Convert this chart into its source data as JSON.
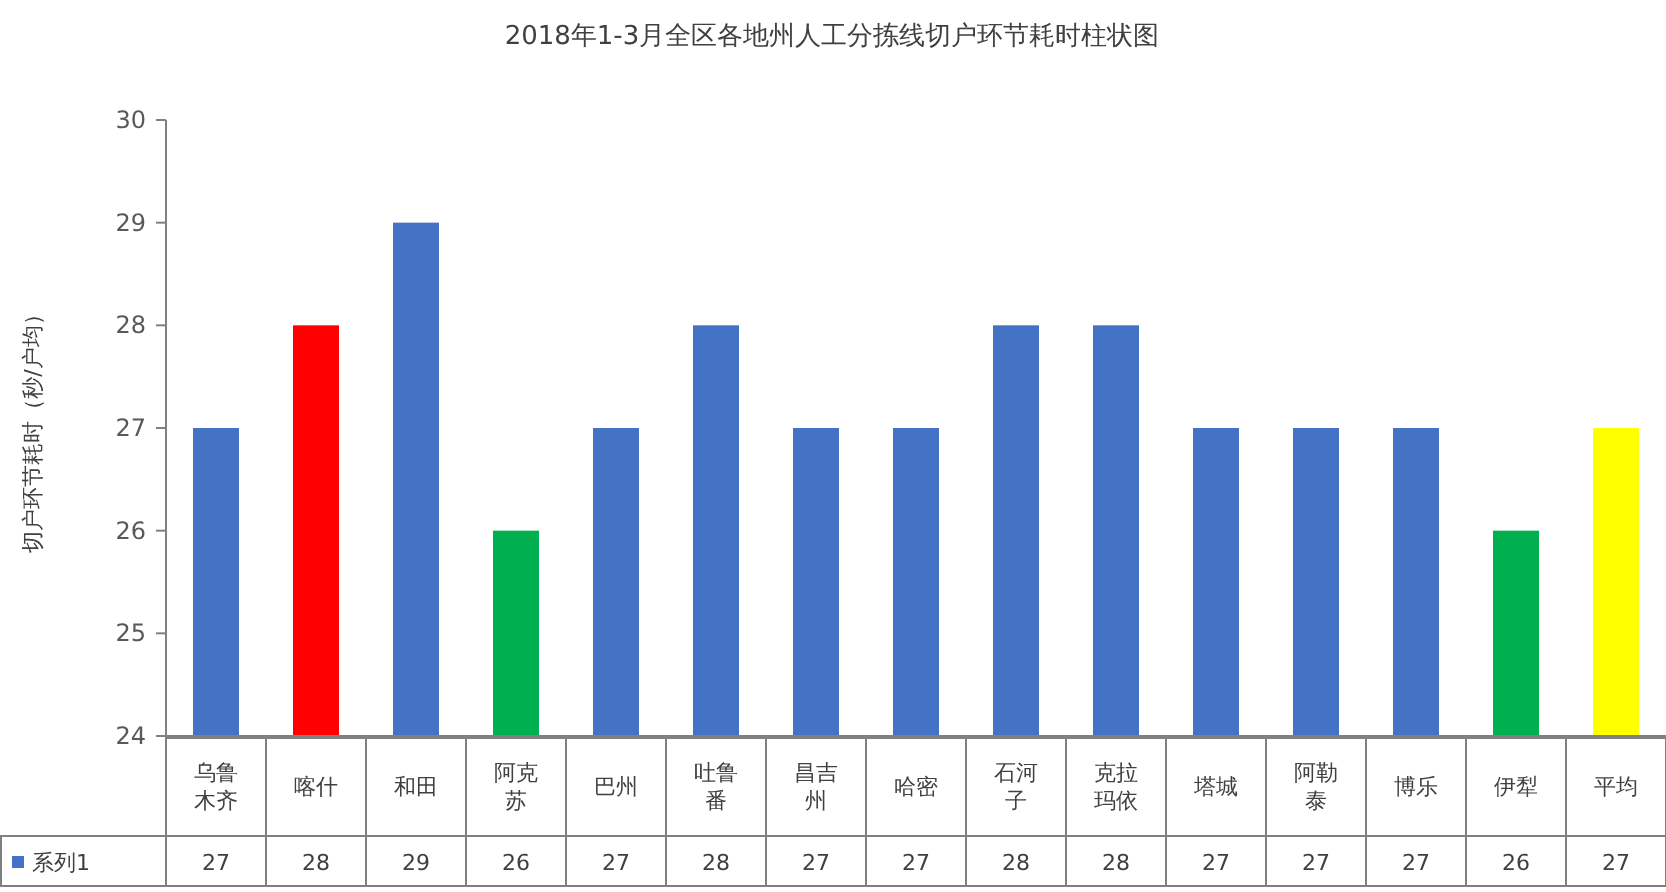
{
  "chart_data": {
    "type": "bar",
    "title": "2018年1-3月全区各地州人工分拣线切户环节耗时柱状图",
    "ylabel": "切户环节耗时（秒/户均）",
    "categories": [
      "乌鲁木齐",
      "喀什",
      "和田",
      "阿克苏",
      "巴州",
      "吐鲁番",
      "昌吉州",
      "哈密",
      "石河子",
      "克拉玛依",
      "塔城",
      "阿勒泰",
      "博乐",
      "伊犁",
      "平均"
    ],
    "series": [
      {
        "name": "系列1",
        "color": "#4472c4",
        "colors": [
          "#4472c4",
          "#ff0000",
          "#4472c4",
          "#00b050",
          "#4472c4",
          "#4472c4",
          "#4472c4",
          "#4472c4",
          "#4472c4",
          "#4472c4",
          "#4472c4",
          "#4472c4",
          "#4472c4",
          "#00b050",
          "#ffff00"
        ],
        "values": [
          27,
          28,
          29,
          26,
          27,
          28,
          27,
          27,
          28,
          28,
          27,
          27,
          27,
          26,
          27
        ]
      }
    ],
    "ylim": [
      24,
      30
    ],
    "yticks": [
      24,
      25,
      26,
      27,
      28,
      29,
      30
    ],
    "grid": false,
    "legend": "bottom left",
    "data_labels": true
  }
}
